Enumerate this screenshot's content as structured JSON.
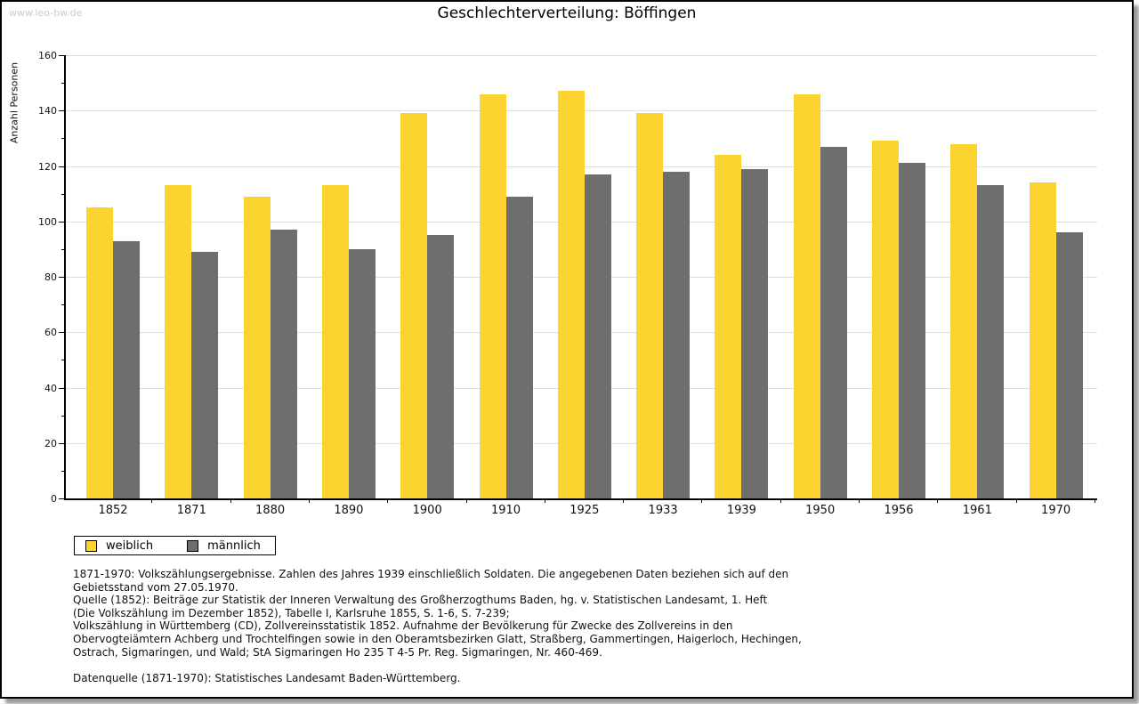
{
  "watermark": "www.leo-bw.de",
  "title": "Geschlechterverteilung: Böffingen",
  "chart_data": {
    "type": "bar",
    "title": "Geschlechterverteilung: Böffingen",
    "xlabel": "",
    "ylabel": "Anzahl Personen",
    "ylim": [
      0,
      160
    ],
    "ytick_step": 20,
    "ytick_minor_step": 10,
    "grid": true,
    "legend_position": "bottom-left",
    "categories": [
      "1852",
      "1871",
      "1880",
      "1890",
      "1900",
      "1910",
      "1925",
      "1933",
      "1939",
      "1950",
      "1956",
      "1961",
      "1970"
    ],
    "series": [
      {
        "name": "weiblich",
        "color": "#FCD42F",
        "values": [
          105,
          113,
          109,
          113,
          139,
          146,
          147,
          139,
          124,
          146,
          129,
          128,
          114
        ]
      },
      {
        "name": "männlich",
        "color": "#6E6E6E",
        "values": [
          93,
          89,
          97,
          90,
          95,
          109,
          117,
          118,
          119,
          127,
          121,
          113,
          96
        ]
      }
    ]
  },
  "legend": {
    "items": [
      {
        "label": "weiblich",
        "color": "#FCD42F"
      },
      {
        "label": "männlich",
        "color": "#6E6E6E"
      }
    ]
  },
  "footer": {
    "lines": [
      "1871-1970: Volkszählungsergebnisse. Zahlen des Jahres 1939 einschließlich Soldaten. Die angegebenen Daten beziehen sich auf den",
      "Gebietsstand vom 27.05.1970.",
      "Quelle (1852): Beiträge zur Statistik der Inneren Verwaltung des Großherzogthums Baden, hg. v. Statistischen Landesamt, 1. Heft",
      "(Die Volkszählung im Dezember 1852), Tabelle I, Karlsruhe 1855, S. 1-6, S. 7-239;",
      "Volkszählung in Württemberg (CD), Zollvereinsstatistik 1852. Aufnahme der Bevölkerung für Zwecke des Zollvereins in den",
      "Obervogteiämtern Achberg und Trochtelfingen sowie in den Oberamtsbezirken Glatt, Straßberg, Gammertingen, Haigerloch, Hechingen,",
      "Ostrach, Sigmaringen, und Wald; StA Sigmaringen Ho 235 T 4-5 Pr. Reg. Sigmaringen, Nr. 460-469."
    ],
    "datenquelle": "Datenquelle (1871-1970): Statistisches Landesamt Baden-Württemberg."
  },
  "colors": {
    "female": "#FCD42F",
    "male": "#6E6E6E",
    "grid": "#DDDDDD",
    "axis": "#000000",
    "watermark": "#CCCCCC"
  }
}
